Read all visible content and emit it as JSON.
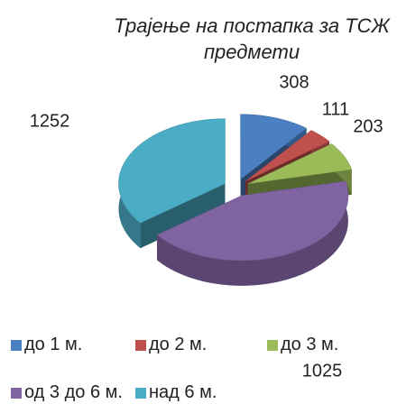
{
  "chart_data": {
    "type": "pie",
    "title": "Трајење на постапка за ТСЖ предмети",
    "categories": [
      "до 1 м.",
      "до 2 м.",
      "до 3 м.",
      "од 3 до 6 м.",
      "над 6 м."
    ],
    "values": [
      308,
      111,
      203,
      1252,
      1025
    ],
    "colors": [
      "#4a7fc1",
      "#c0504d",
      "#9bbb59",
      "#8064a2",
      "#4bacc6"
    ],
    "legend": "bottom"
  }
}
